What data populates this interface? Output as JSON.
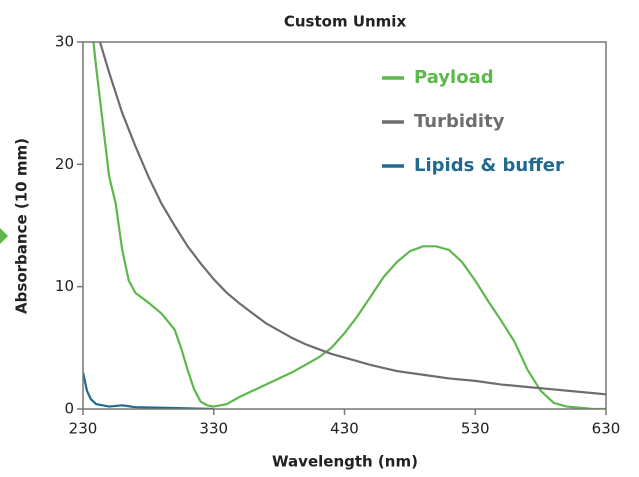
{
  "chart_data": {
    "type": "line",
    "title": "Custom Unmix",
    "x_label": "Wavelength (nm)",
    "y_label": "Absorbance (10 mm)",
    "xlim": [
      230,
      630
    ],
    "ylim": [
      0,
      30
    ],
    "xticks": [
      230,
      330,
      430,
      530,
      630
    ],
    "yticks": [
      0,
      10,
      20,
      30
    ],
    "grid": false,
    "legend": "upper right",
    "series": [
      {
        "name": "Payload",
        "color": "#5cb84a",
        "x": [
          238,
          240,
          245,
          250,
          255,
          260,
          265,
          270,
          280,
          290,
          300,
          305,
          310,
          315,
          320,
          325,
          330,
          340,
          350,
          360,
          370,
          380,
          390,
          400,
          410,
          420,
          430,
          440,
          450,
          460,
          470,
          480,
          490,
          500,
          510,
          520,
          530,
          540,
          550,
          560,
          570,
          580,
          590,
          600,
          610,
          620,
          630
        ],
        "values": [
          30,
          28,
          23.5,
          19,
          16.8,
          13,
          10.5,
          9.5,
          8.7,
          7.8,
          6.5,
          5,
          3.2,
          1.6,
          0.6,
          0.3,
          0.2,
          0.4,
          1,
          1.5,
          2,
          2.5,
          3,
          3.6,
          4.2,
          5,
          6.2,
          7.6,
          9.2,
          10.8,
          12,
          12.9,
          13.3,
          13.3,
          13,
          12,
          10.5,
          8.8,
          7.2,
          5.5,
          3.2,
          1.5,
          0.5,
          0.2,
          0.1,
          0,
          0
        ]
      },
      {
        "name": "Turbidity",
        "color": "#6d6d6f",
        "x": [
          243,
          250,
          260,
          270,
          280,
          290,
          300,
          310,
          320,
          330,
          340,
          350,
          360,
          370,
          380,
          390,
          400,
          410,
          420,
          430,
          450,
          470,
          490,
          510,
          530,
          550,
          570,
          590,
          610,
          630
        ],
        "values": [
          30,
          27.5,
          24.2,
          21.5,
          19,
          16.8,
          15,
          13.3,
          11.9,
          10.6,
          9.5,
          8.6,
          7.8,
          7.0,
          6.4,
          5.8,
          5.3,
          4.9,
          4.5,
          4.2,
          3.6,
          3.1,
          2.8,
          2.5,
          2.3,
          2.0,
          1.8,
          1.6,
          1.4,
          1.2
        ]
      },
      {
        "name": "Lipids & buffer",
        "color": "#1f6a8e",
        "x": [
          230,
          233,
          236,
          240,
          250,
          260,
          270,
          290,
          310,
          330
        ],
        "values": [
          3,
          1.5,
          0.8,
          0.4,
          0.2,
          0.3,
          0.15,
          0.1,
          0.05,
          0
        ]
      }
    ]
  }
}
